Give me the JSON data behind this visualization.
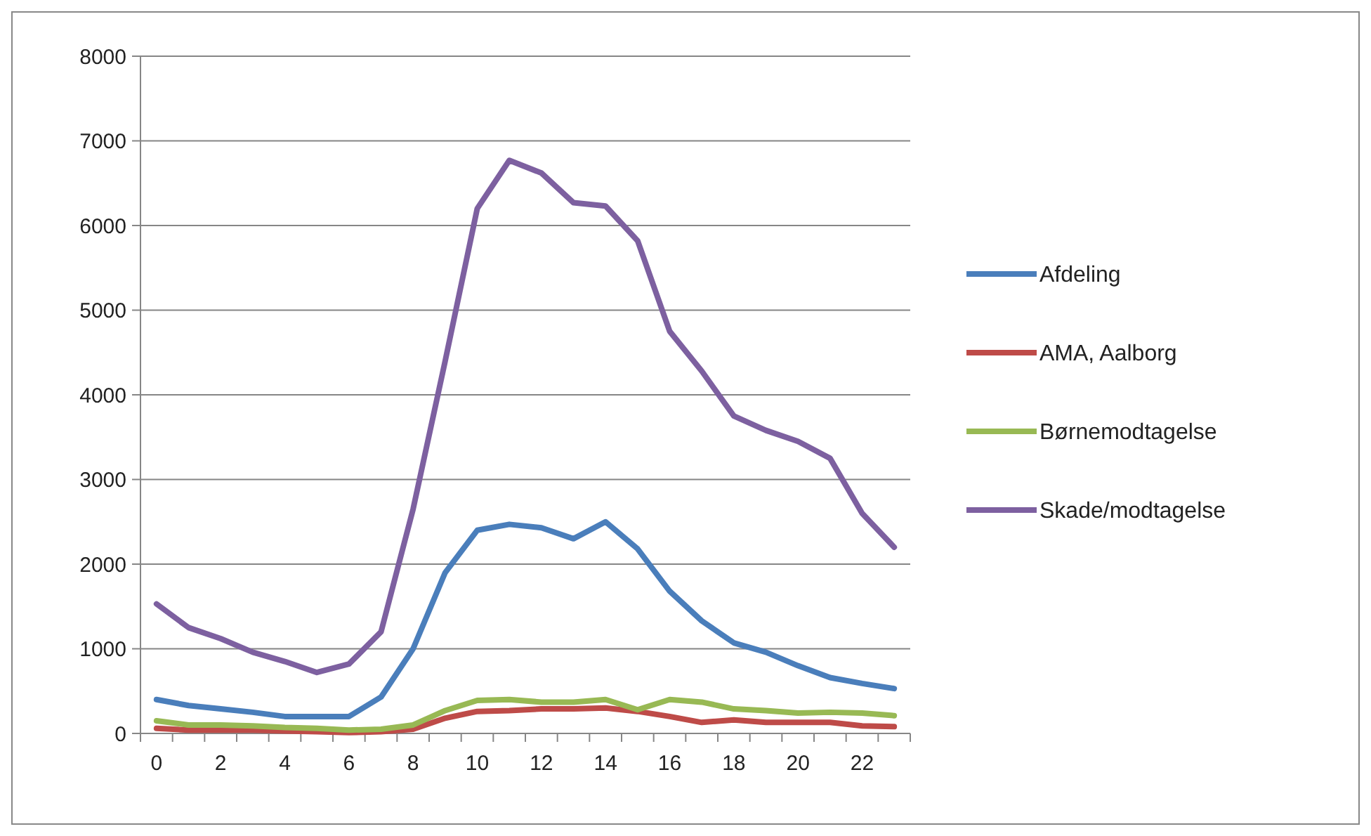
{
  "chart_data": {
    "type": "line",
    "categories": [
      "0",
      null,
      "2",
      null,
      "4",
      null,
      "6",
      null,
      "8",
      null,
      "10",
      null,
      "12",
      null,
      "14",
      null,
      "16",
      null,
      "18",
      null,
      "20",
      null,
      "22",
      null
    ],
    "series": [
      {
        "name": "Afdeling",
        "color": "#4a7ebb",
        "values": [
          400,
          330,
          290,
          250,
          200,
          200,
          200,
          430,
          1000,
          1900,
          2400,
          2470,
          2430,
          2300,
          2500,
          2180,
          1680,
          1330,
          1070,
          960,
          800,
          660,
          590,
          530
        ]
      },
      {
        "name": "AMA, Aalborg",
        "color": "#be4b48",
        "values": [
          60,
          40,
          40,
          40,
          30,
          20,
          10,
          20,
          50,
          180,
          260,
          270,
          290,
          290,
          300,
          260,
          200,
          130,
          160,
          130,
          130,
          130,
          90,
          80
        ]
      },
      {
        "name": "Børnemodtagelse",
        "color": "#98b954",
        "values": [
          150,
          100,
          100,
          90,
          70,
          60,
          40,
          50,
          100,
          270,
          390,
          400,
          370,
          370,
          400,
          280,
          400,
          370,
          290,
          270,
          240,
          250,
          240,
          210
        ]
      },
      {
        "name": "Skade/modtagelse",
        "color": "#7d60a0",
        "values": [
          1530,
          1250,
          1120,
          960,
          850,
          720,
          820,
          1200,
          2650,
          4400,
          6200,
          6770,
          6620,
          6270,
          6230,
          5820,
          4750,
          4280,
          3750,
          3580,
          3450,
          3250,
          2600,
          2200
        ]
      }
    ],
    "ylim": [
      0,
      8000
    ],
    "yticks": [
      0,
      1000,
      2000,
      3000,
      4000,
      5000,
      6000,
      7000,
      8000
    ],
    "grid": "y",
    "legend": "right",
    "marker": "none",
    "line_style": "solid"
  }
}
